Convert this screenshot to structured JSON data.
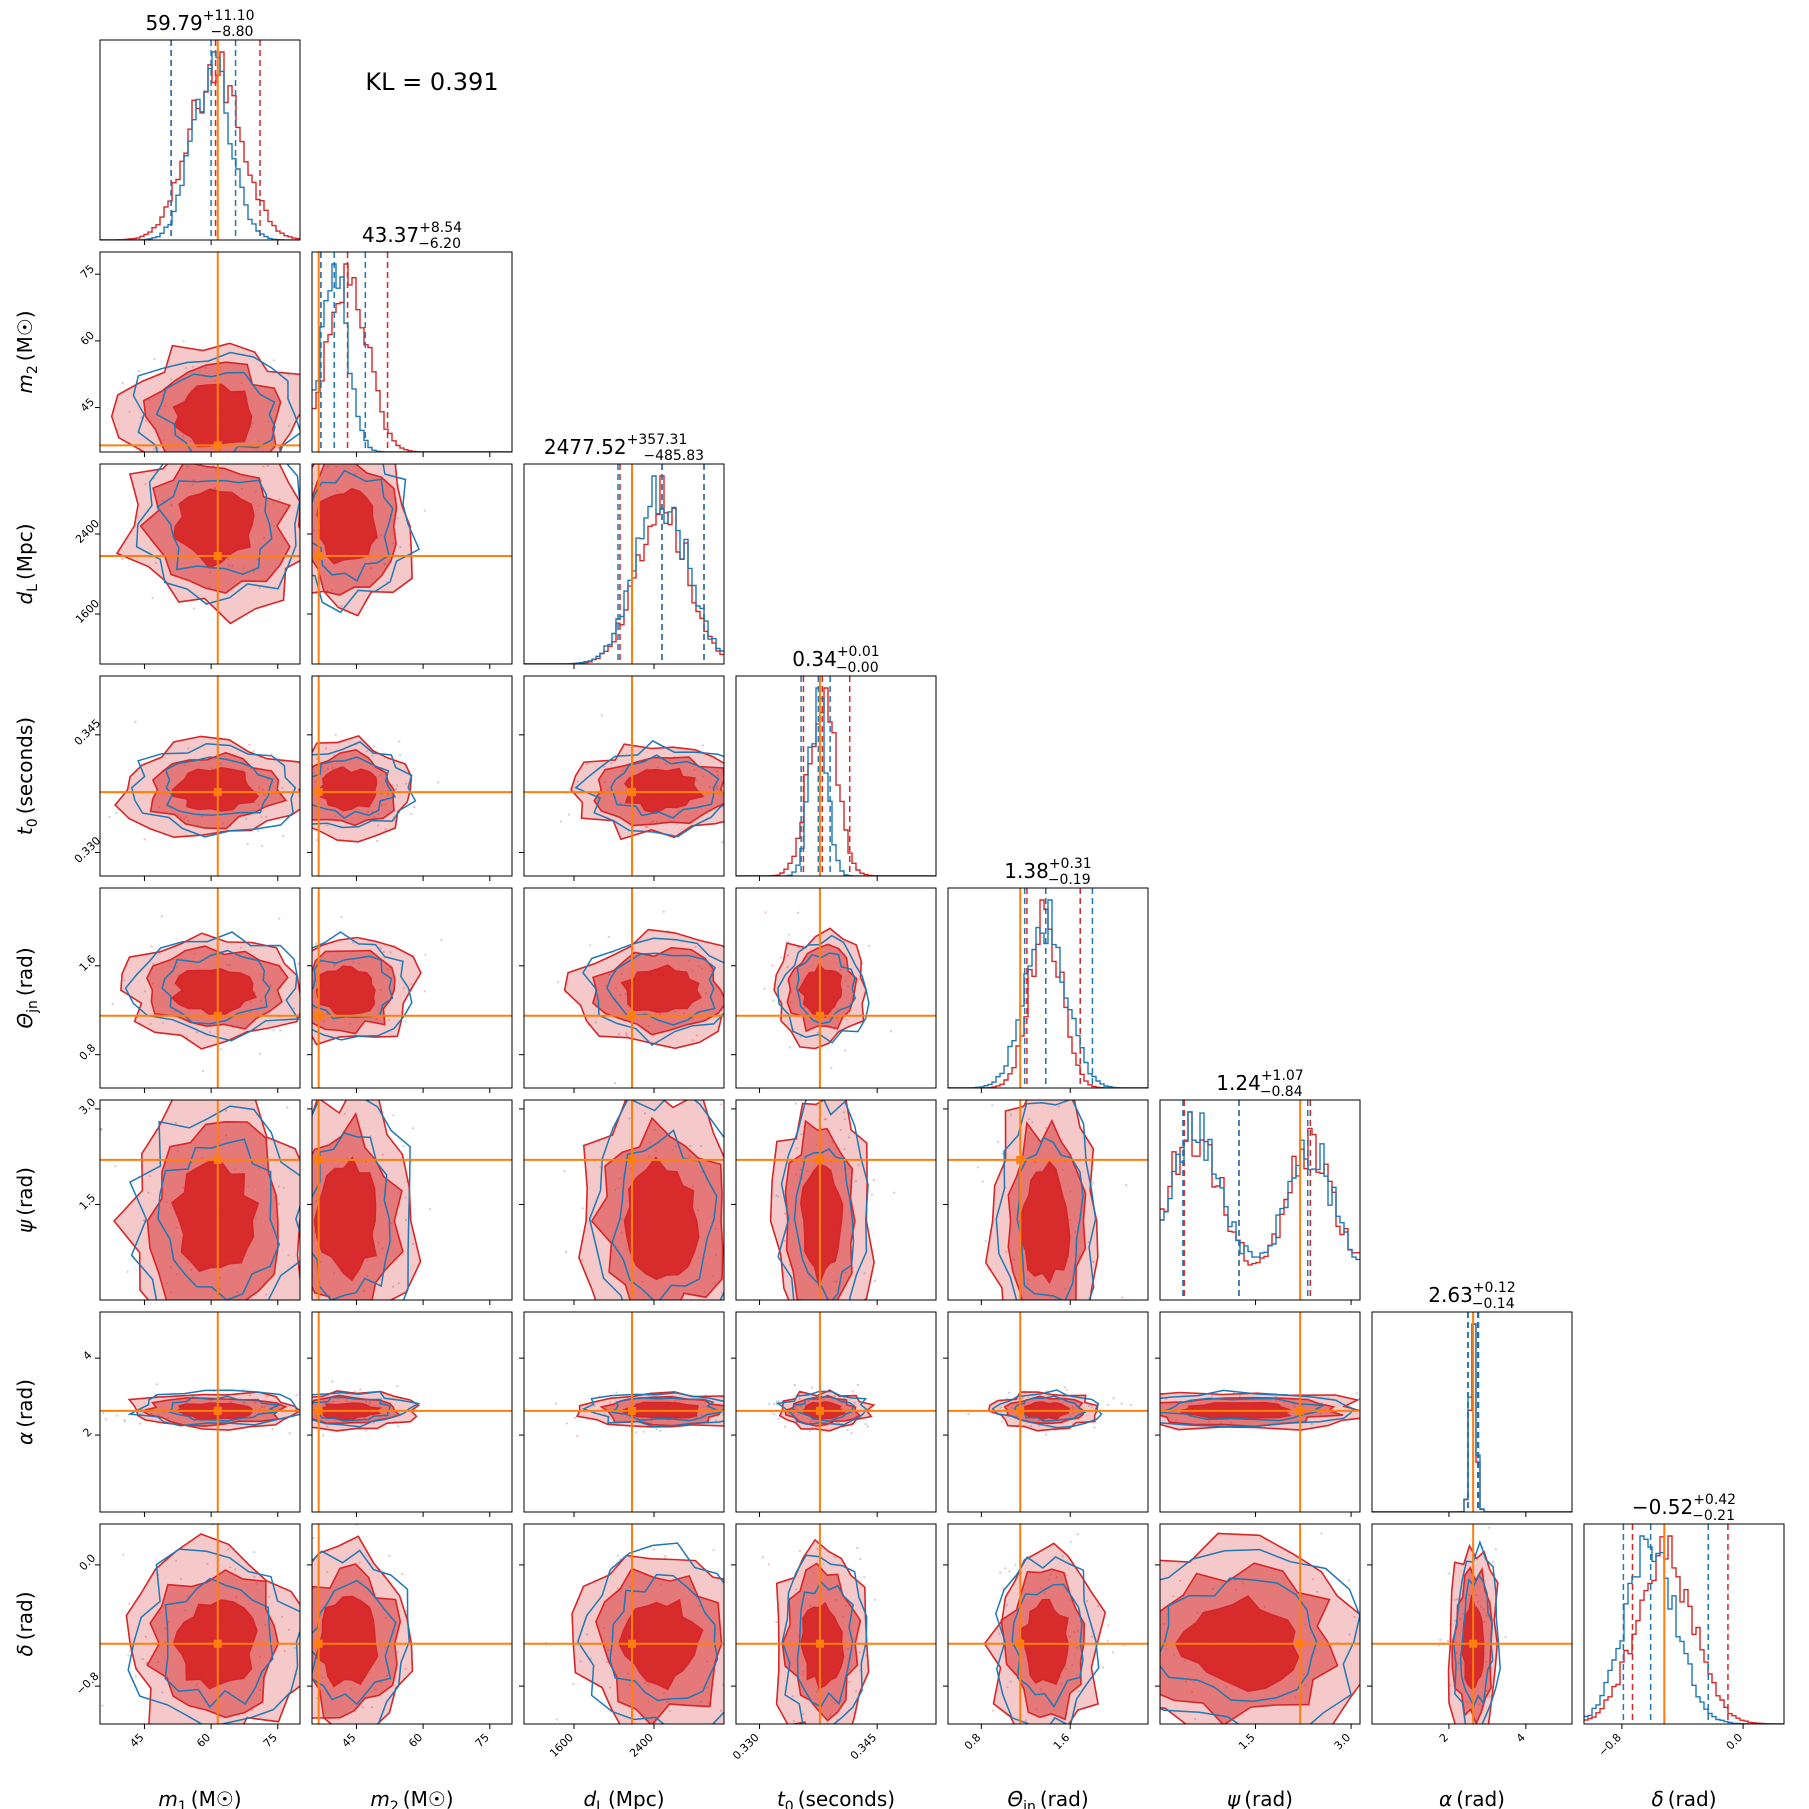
{
  "annotation": "KL = 0.391",
  "colors": {
    "red": "#d62728",
    "blue": "#1f77b4",
    "truth": "#ff7f0e"
  },
  "chart_data": {
    "type": "corner",
    "series": [
      {
        "name": "",
        "color": "#d62728",
        "style": "filled contours + step histogram"
      },
      {
        "name": "",
        "color": "#1f77b4",
        "style": "line contours + step histogram"
      }
    ],
    "parameters": [
      {
        "key": "m1",
        "symbol": "m",
        "sub": "1",
        "unit": "(M☉)",
        "range": [
          35,
          80
        ],
        "ticks": [
          45,
          60,
          75
        ],
        "tick_labels": [
          "45",
          "60",
          "75"
        ],
        "truth": 61.5,
        "median": "59.79",
        "plus": "+11.10",
        "minus": "−8.80",
        "red_q": [
          51,
          61,
          71
        ],
        "blue_q": [
          51,
          60,
          65.5
        ]
      },
      {
        "key": "m2",
        "symbol": "m",
        "sub": "2",
        "unit": "(M☉)",
        "range": [
          35,
          80
        ],
        "ticks": [
          45,
          60,
          75
        ],
        "tick_labels": [
          "45",
          "60",
          "75"
        ],
        "truth": 36.5,
        "median": "43.37",
        "plus": "+8.54",
        "minus": "−6.20",
        "red_q": [
          37,
          43,
          52
        ],
        "blue_q": [
          37,
          40,
          47
        ]
      },
      {
        "key": "dL",
        "symbol": "d",
        "sub": "L",
        "unit": "(Mpc)",
        "range": [
          1100,
          3100
        ],
        "ticks": [
          1600,
          2400
        ],
        "tick_labels": [
          "1600",
          "2400"
        ],
        "truth": 2180,
        "median": "2477.52",
        "plus": "+357.31",
        "minus": "−485.83",
        "red_q": [
          2060,
          2480,
          2900
        ],
        "blue_q": [
          2040,
          2480,
          2900
        ]
      },
      {
        "key": "t0",
        "symbol": "t",
        "sub": "0",
        "unit": "(seconds)",
        "range": [
          0.327,
          0.3525
        ],
        "ticks": [
          0.33,
          0.345
        ],
        "tick_labels": [
          "0.330",
          "0.345"
        ],
        "truth": 0.3377,
        "median": "0.34",
        "plus": "+0.01",
        "minus": "−0.00",
        "red_q": [
          0.3356,
          0.338,
          0.3415
        ],
        "blue_q": [
          0.3353,
          0.3375,
          0.339
        ]
      },
      {
        "key": "theta_jn",
        "symbol": "Θ",
        "sub": "jn",
        "unit": "(rad)",
        "range": [
          0.5,
          2.3
        ],
        "ticks": [
          0.8,
          1.6
        ],
        "tick_labels": [
          "0.8",
          "1.6"
        ],
        "truth": 1.15,
        "median": "1.38",
        "plus": "+0.31",
        "minus": "−0.19",
        "red_q": [
          1.21,
          1.38,
          1.69
        ],
        "blue_q": [
          1.19,
          1.38,
          1.8
        ]
      },
      {
        "key": "psi",
        "symbol": "ψ",
        "sub": "",
        "unit": "(rad)",
        "range": [
          0,
          3.14
        ],
        "ticks": [
          1.5,
          3.0
        ],
        "tick_labels": [
          "1.5",
          "3.0"
        ],
        "truth": 2.2,
        "median": "1.24",
        "plus": "+1.07",
        "minus": "−0.84",
        "red_q": [
          0.38,
          1.24,
          2.36
        ],
        "blue_q": [
          0.36,
          1.24,
          2.32
        ]
      },
      {
        "key": "alpha",
        "symbol": "α",
        "sub": "",
        "unit": "(rad)",
        "range": [
          0,
          5.2
        ],
        "ticks": [
          2,
          4
        ],
        "tick_labels": [
          "2",
          "4"
        ],
        "truth": 2.63,
        "median": "2.63",
        "plus": "+0.12",
        "minus": "−0.14",
        "red_q": [
          2.49,
          2.63,
          2.75
        ],
        "blue_q": [
          2.5,
          2.63,
          2.77
        ]
      },
      {
        "key": "delta",
        "symbol": "δ",
        "sub": "",
        "unit": "(rad)",
        "range": [
          -1.05,
          0.27
        ],
        "ticks": [
          -0.8,
          0.0
        ],
        "tick_labels": [
          "−0.8",
          "0.0"
        ],
        "truth": -0.52,
        "median": "−0.52",
        "plus": "+0.42",
        "minus": "−0.21",
        "red_q": [
          -0.73,
          -0.52,
          -0.1
        ],
        "blue_q": [
          -0.79,
          -0.61,
          -0.23
        ]
      }
    ]
  }
}
